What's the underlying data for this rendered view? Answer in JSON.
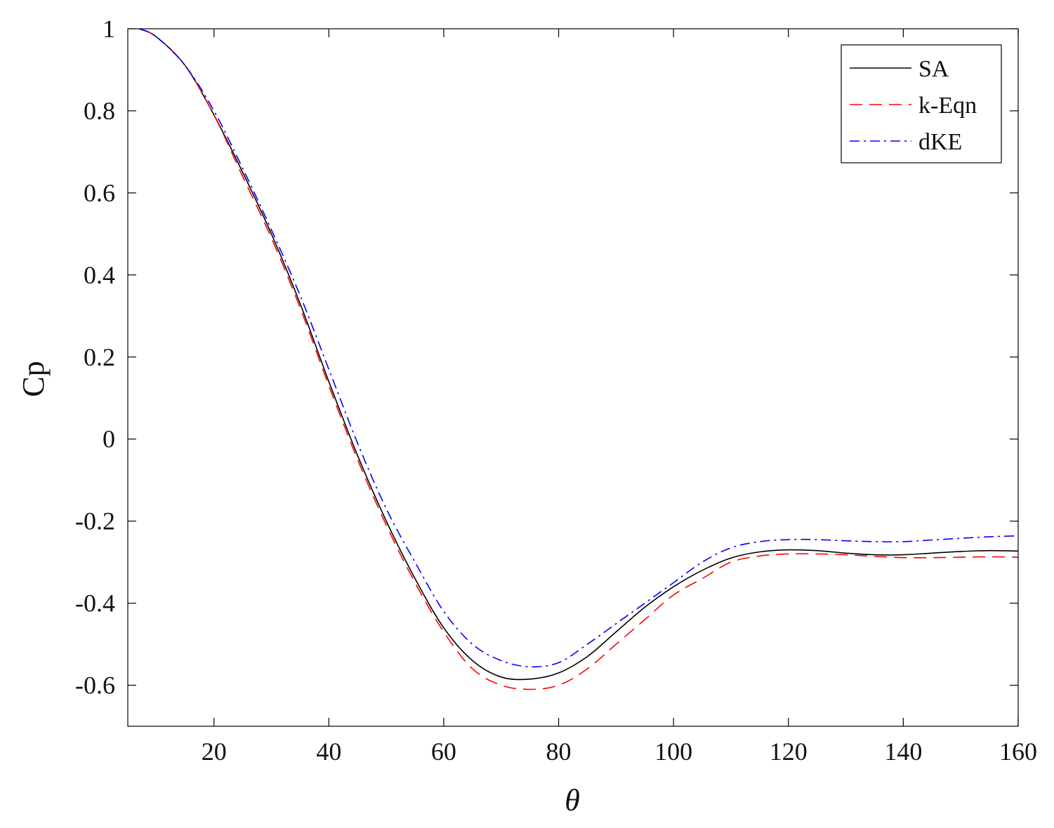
{
  "chart_data": {
    "type": "line",
    "xlabel": "θ",
    "ylabel": "Cp",
    "xlim": [
      5,
      160
    ],
    "ylim": [
      -0.7,
      1
    ],
    "xticks": [
      20,
      40,
      60,
      80,
      100,
      120,
      140,
      160
    ],
    "yticks": [
      1,
      0.8,
      0.6,
      0.4,
      0.2,
      0,
      -0.2,
      -0.4,
      -0.6
    ],
    "xtick_labels": [
      "20",
      "40",
      "60",
      "80",
      "100",
      "120",
      "140",
      "160"
    ],
    "ytick_labels": [
      "1",
      "0.8",
      "0.6",
      "0.4",
      "0.2",
      "0",
      "-0.2",
      "-0.4",
      "-0.6"
    ],
    "grid": false,
    "legend_position": "top-right",
    "series": [
      {
        "name": "SA",
        "color": "#000000",
        "style": "solid",
        "x": [
          7,
          10,
          15,
          20,
          25,
          30,
          35,
          40,
          45,
          50,
          55,
          60,
          65,
          70,
          75,
          80,
          85,
          90,
          95,
          100,
          105,
          110,
          115,
          120,
          125,
          130,
          135,
          140,
          145,
          150,
          155,
          160
        ],
        "y": [
          1.0,
          0.98,
          0.91,
          0.79,
          0.65,
          0.5,
          0.33,
          0.14,
          -0.04,
          -0.2,
          -0.34,
          -0.46,
          -0.54,
          -0.58,
          -0.585,
          -0.57,
          -0.53,
          -0.47,
          -0.41,
          -0.36,
          -0.32,
          -0.29,
          -0.275,
          -0.27,
          -0.272,
          -0.278,
          -0.282,
          -0.282,
          -0.278,
          -0.274,
          -0.272,
          -0.273
        ]
      },
      {
        "name": "k-Eqn",
        "color": "#ff0000",
        "style": "dashed",
        "x": [
          7,
          10,
          15,
          20,
          25,
          30,
          35,
          40,
          45,
          50,
          55,
          60,
          65,
          70,
          75,
          80,
          85,
          90,
          95,
          100,
          105,
          110,
          115,
          120,
          125,
          130,
          135,
          140,
          145,
          150,
          155,
          160
        ],
        "y": [
          1.0,
          0.98,
          0.91,
          0.79,
          0.64,
          0.49,
          0.32,
          0.13,
          -0.05,
          -0.21,
          -0.35,
          -0.47,
          -0.56,
          -0.6,
          -0.61,
          -0.6,
          -0.56,
          -0.5,
          -0.44,
          -0.38,
          -0.34,
          -0.3,
          -0.285,
          -0.28,
          -0.28,
          -0.282,
          -0.286,
          -0.289,
          -0.289,
          -0.288,
          -0.287,
          -0.288
        ]
      },
      {
        "name": "dKE",
        "color": "#0000ff",
        "style": "dashdot",
        "x": [
          7,
          10,
          15,
          20,
          25,
          30,
          35,
          40,
          45,
          50,
          55,
          60,
          65,
          70,
          75,
          80,
          85,
          90,
          95,
          100,
          105,
          110,
          115,
          120,
          125,
          130,
          135,
          140,
          145,
          150,
          155,
          160
        ],
        "y": [
          1.0,
          0.98,
          0.91,
          0.8,
          0.66,
          0.51,
          0.35,
          0.17,
          -0.01,
          -0.17,
          -0.3,
          -0.42,
          -0.5,
          -0.54,
          -0.555,
          -0.545,
          -0.5,
          -0.45,
          -0.4,
          -0.35,
          -0.3,
          -0.265,
          -0.25,
          -0.245,
          -0.245,
          -0.248,
          -0.25,
          -0.25,
          -0.246,
          -0.242,
          -0.238,
          -0.236
        ]
      }
    ]
  }
}
